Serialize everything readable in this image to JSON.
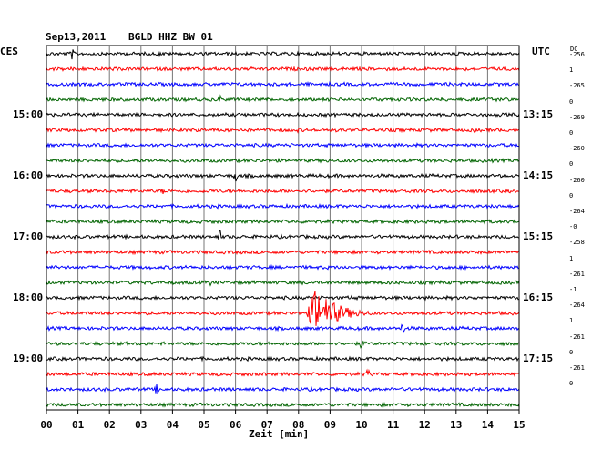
{
  "header": {
    "date": "Sep13,2011",
    "station": "BGLD HHZ BW 01",
    "left_zone": "CES",
    "right_zone": "UTC",
    "dc_label": "DC"
  },
  "chart_data": {
    "type": "line",
    "title": "Sep13,2011   BGLD HHZ BW 01",
    "xlabel": "Zeit [min]",
    "xlim": [
      0,
      15
    ],
    "x_ticks": [
      "00",
      "01",
      "02",
      "03",
      "04",
      "05",
      "06",
      "07",
      "08",
      "09",
      "10",
      "11",
      "12",
      "13",
      "14",
      "15"
    ],
    "rows_per_hour": 4,
    "row_colors": [
      "#000000",
      "#ff0000",
      "#0000ff",
      "#006400"
    ],
    "left_time_labels": [
      {
        "row": 4,
        "label": "15:00"
      },
      {
        "row": 8,
        "label": "16:00"
      },
      {
        "row": 12,
        "label": "17:00"
      },
      {
        "row": 16,
        "label": "18:00"
      },
      {
        "row": 20,
        "label": "19:00"
      }
    ],
    "right_time_labels": [
      {
        "row": 4,
        "label": "13:15"
      },
      {
        "row": 8,
        "label": "14:15"
      },
      {
        "row": 12,
        "label": "15:15"
      },
      {
        "row": 16,
        "label": "16:15"
      },
      {
        "row": 20,
        "label": "17:15"
      }
    ],
    "dc_offsets": [
      "-256",
      "1",
      "-265",
      "0",
      "-269",
      "0",
      "-260",
      "0",
      "-260",
      "0",
      "-264",
      "-0",
      "-258",
      "1",
      "-261",
      "-1",
      "-264",
      "1",
      "-261",
      "0",
      "-261",
      "0"
    ],
    "events": [
      {
        "row": 0,
        "minute": 0.8,
        "amp": 7
      },
      {
        "row": 0,
        "minute": 3.6,
        "amp": 3
      },
      {
        "row": 1,
        "minute": 2.1,
        "amp": 2
      },
      {
        "row": 2,
        "minute": 12.8,
        "amp": 2
      },
      {
        "row": 3,
        "minute": 5.5,
        "amp": 5
      },
      {
        "row": 3,
        "minute": 14.4,
        "amp": 5
      },
      {
        "row": 5,
        "minute": 8.0,
        "amp": 3
      },
      {
        "row": 5,
        "minute": 13.6,
        "amp": 3
      },
      {
        "row": 8,
        "minute": 6.0,
        "amp": 8
      },
      {
        "row": 9,
        "minute": 3.7,
        "amp": 4
      },
      {
        "row": 12,
        "minute": 5.5,
        "amp": 8
      },
      {
        "row": 14,
        "minute": 12.7,
        "amp": 4
      },
      {
        "row": 15,
        "minute": 5.2,
        "amp": 4
      },
      {
        "row": 16,
        "minute": 9.7,
        "amp": 4
      },
      {
        "row": 17,
        "minute": 8.4,
        "amp": 27,
        "long": true
      },
      {
        "row": 18,
        "minute": 11.3,
        "amp": 7
      },
      {
        "row": 19,
        "minute": 10.0,
        "amp": 7
      },
      {
        "row": 20,
        "minute": 14.0,
        "amp": 3
      },
      {
        "row": 21,
        "minute": 10.2,
        "amp": 6
      },
      {
        "row": 22,
        "minute": 3.5,
        "amp": 6
      },
      {
        "row": 23,
        "minute": 10.6,
        "amp": 3
      }
    ]
  }
}
